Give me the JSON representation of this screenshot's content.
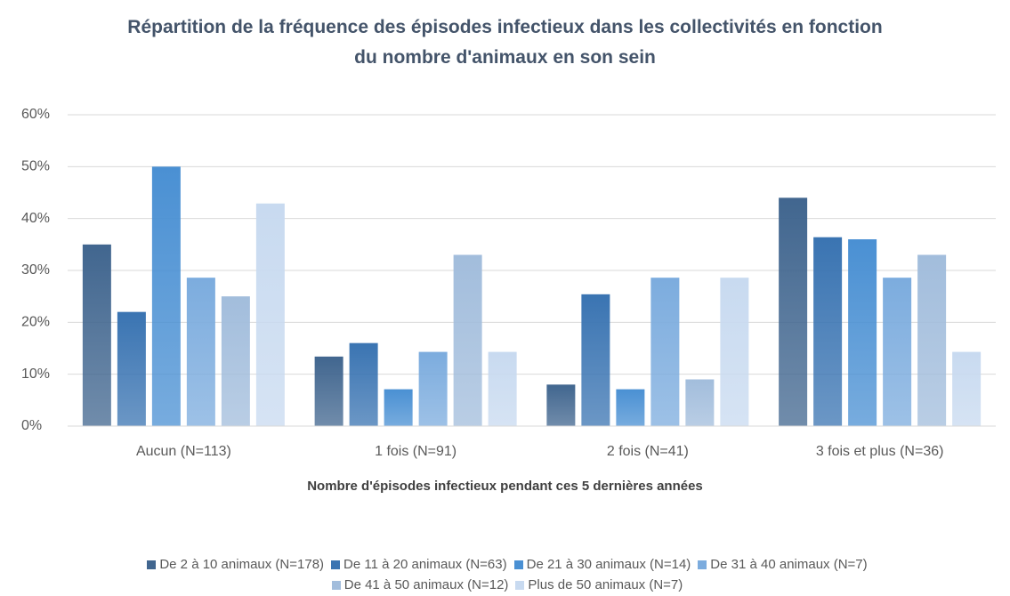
{
  "chart_data": {
    "type": "bar",
    "title": "Répartition de la fréquence des épisodes infectieux dans les collectivités en fonction du nombre d'animaux en son sein",
    "x_label": "Nombre d'épisodes infectieux pendant ces 5 dernières années",
    "categories": [
      "Aucun (N=113)",
      "1 fois (N=91)",
      "2 fois (N=41)",
      "3 fois et plus (N=36)"
    ],
    "series": [
      {
        "name": "De 2 à 10 animaux (N=178)",
        "color": "#41668f",
        "values": [
          35,
          13.4,
          8,
          44
        ]
      },
      {
        "name": "De 11 à 20 animaux (N=63)",
        "color": "#3a74b2",
        "values": [
          22,
          16,
          25.4,
          36.4
        ]
      },
      {
        "name": "De 21 à 30 animaux (N=14)",
        "color": "#4a90d3",
        "values": [
          50,
          7.1,
          7.1,
          36
        ]
      },
      {
        "name": "De 31 à 40 animaux (N=7)",
        "color": "#7cacde",
        "values": [
          28.6,
          14.3,
          28.6,
          28.6
        ]
      },
      {
        "name": "De 41 à 50 animaux (N=12)",
        "color": "#a2bddc",
        "values": [
          25,
          33,
          9,
          33
        ]
      },
      {
        "name": "Plus de 50 animaux (N=7)",
        "color": "#c8daf0",
        "values": [
          42.9,
          14.3,
          28.6,
          14.3
        ]
      }
    ],
    "ylim": [
      0,
      60
    ],
    "yticks": [
      {
        "value": 0,
        "label": "0%"
      },
      {
        "value": 10,
        "label": "10%"
      },
      {
        "value": 20,
        "label": "20%"
      },
      {
        "value": 30,
        "label": "30%"
      },
      {
        "value": 40,
        "label": "40%"
      },
      {
        "value": 50,
        "label": "50%"
      },
      {
        "value": 60,
        "label": "60%"
      }
    ],
    "grid": true,
    "legend": "bottom"
  }
}
